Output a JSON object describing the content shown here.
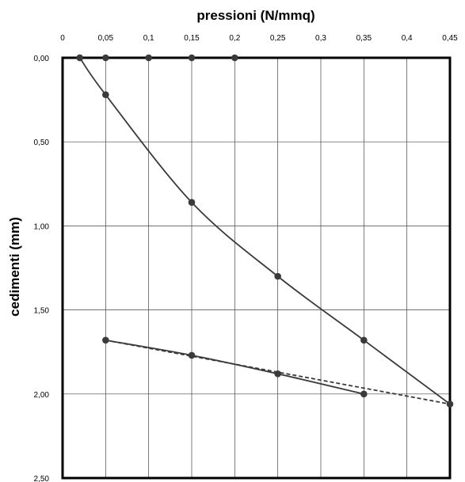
{
  "chart_data": {
    "type": "line",
    "title": "",
    "xlabel": "pressioni (N/mmq)",
    "ylabel": "cedimenti (mm)",
    "xlim": [
      0,
      0.45
    ],
    "ylim": [
      0,
      2.5
    ],
    "y_inverted": true,
    "x_axis_position": "top",
    "grid": true,
    "legend": "none",
    "x_ticks": [
      "0",
      "0,05",
      "0,1",
      "0,15",
      "0,2",
      "0,25",
      "0,3",
      "0,35",
      "0,4",
      "0,45"
    ],
    "y_ticks": [
      "0,00",
      "0,50",
      "1,00",
      "1,50",
      "2,00",
      "2,50"
    ],
    "series": [
      {
        "style": "solid-with-markers",
        "color": "#3a3a3a",
        "points": [
          [
            0.02,
            0.0
          ],
          [
            0.05,
            0.0
          ],
          [
            0.1,
            0.0
          ],
          [
            0.15,
            0.0
          ],
          [
            0.2,
            0.0
          ]
        ]
      },
      {
        "style": "solid-with-markers",
        "color": "#3a3a3a",
        "points": [
          [
            0.02,
            0.0
          ],
          [
            0.05,
            0.22
          ],
          [
            0.15,
            0.86
          ],
          [
            0.25,
            1.3
          ],
          [
            0.35,
            1.68
          ],
          [
            0.45,
            2.06
          ]
        ]
      },
      {
        "style": "solid-with-markers",
        "color": "#3a3a3a",
        "points": [
          [
            0.05,
            1.68
          ],
          [
            0.15,
            1.77
          ],
          [
            0.25,
            1.88
          ],
          [
            0.35,
            2.0
          ]
        ]
      },
      {
        "style": "dashed",
        "color": "#3a3a3a",
        "points": [
          [
            0.05,
            1.68
          ],
          [
            0.45,
            2.06
          ]
        ]
      }
    ]
  }
}
